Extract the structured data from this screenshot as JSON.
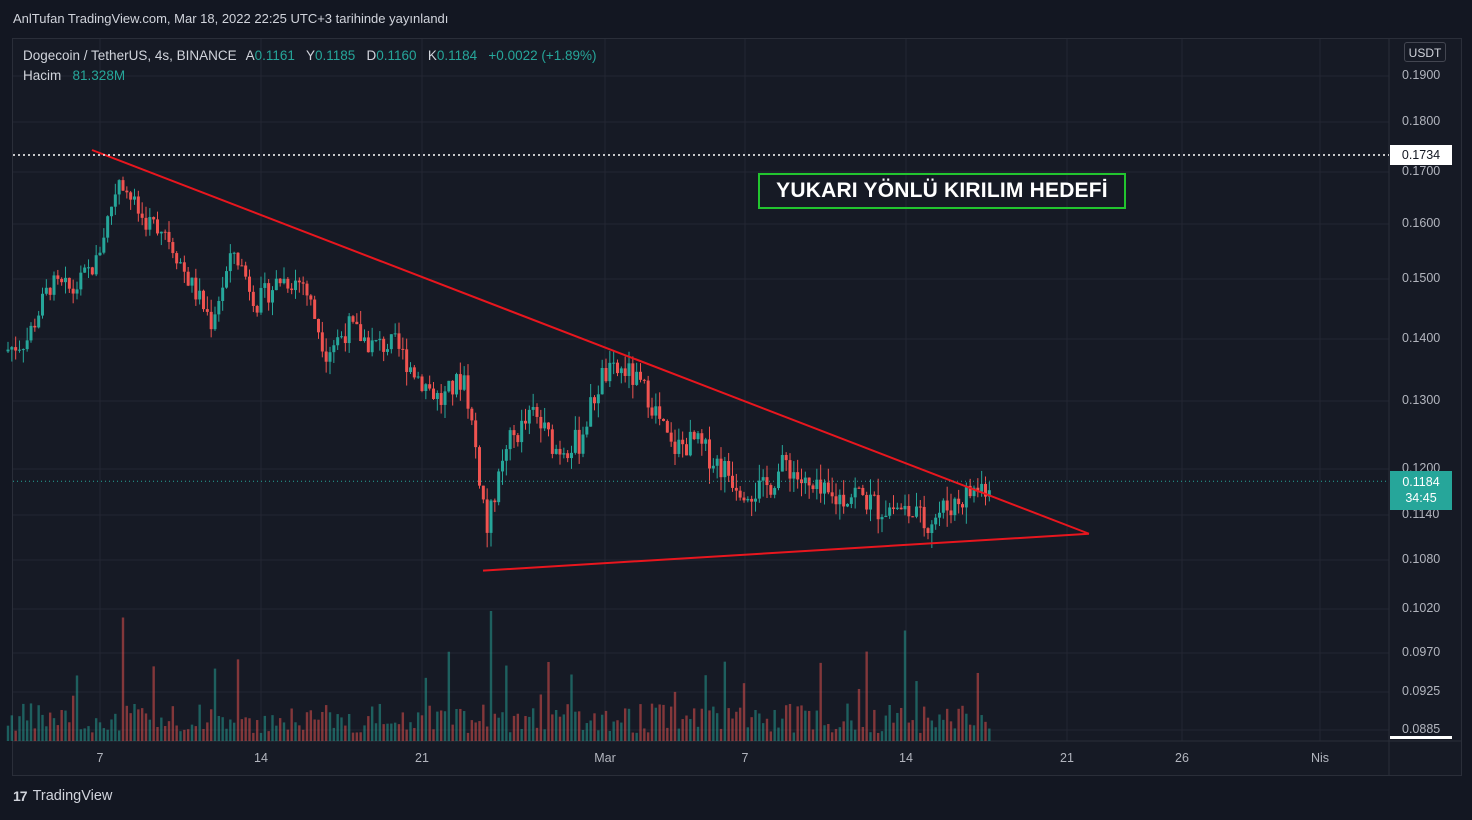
{
  "header": {
    "published": "AnlTufan TradingView.com, Mar 18, 2022 22:25 UTC+3 tarihinde yayınlandı"
  },
  "legend": {
    "symbol": "Dogecoin / TetherUS, 4s, BINANCE",
    "open_key": "A",
    "open": "0.1161",
    "high_key": "Y",
    "high": "0.1185",
    "low_key": "D",
    "low": "0.1160",
    "close_key": "K",
    "close": "0.1184",
    "change": "+0.0022 (+1.89%)",
    "volume_label": "Hacim",
    "volume": "81.328M"
  },
  "currency": "USDT",
  "annotation": "YUKARI YÖNLÜ KIRILIM HEDEFİ",
  "brand": "TradingView",
  "colors": {
    "background": "#131722",
    "up": "#26a69a",
    "down": "#ef5350",
    "trendline": "#e8161e",
    "annotation_border": "#22c42f"
  },
  "chart_data": {
    "type": "candlestick",
    "symbol": "DOGE/USDT",
    "interval": "4h",
    "y_ticks": [
      "0.1900",
      "0.1800",
      "0.1700",
      "0.1600",
      "0.1500",
      "0.1400",
      "0.1300",
      "0.1200",
      "0.1140",
      "0.1080",
      "0.1020",
      "0.0970",
      "0.0925",
      "0.0885"
    ],
    "x_ticks": [
      "7",
      "14",
      "21",
      "Mar",
      "7",
      "14",
      "21",
      "26",
      "Nis"
    ],
    "target_price": "0.1734",
    "last_price": "0.1184",
    "countdown": "34:45",
    "close_path": [
      [
        "Feb 3",
        0.138
      ],
      [
        "Feb 4",
        0.14
      ],
      [
        "Feb 5",
        0.149
      ],
      [
        "Feb 6",
        0.148
      ],
      [
        "Feb 7",
        0.153
      ],
      [
        "Feb 8",
        0.169
      ],
      [
        "Feb 9",
        0.161
      ],
      [
        "Feb 10",
        0.159
      ],
      [
        "Feb 11",
        0.15
      ],
      [
        "Feb 12",
        0.143
      ],
      [
        "Feb 13",
        0.155
      ],
      [
        "Feb 14",
        0.146
      ],
      [
        "Feb 15",
        0.15
      ],
      [
        "Feb 16",
        0.1495
      ],
      [
        "Feb 17",
        0.138
      ],
      [
        "Feb 18",
        0.142
      ],
      [
        "Feb 19",
        0.139
      ],
      [
        "Feb 20",
        0.139
      ],
      [
        "Feb 21",
        0.134
      ],
      [
        "Feb 22",
        0.13
      ],
      [
        "Feb 23",
        0.134
      ],
      [
        "Feb 24",
        0.112
      ],
      [
        "Feb 25",
        0.124
      ],
      [
        "Feb 26",
        0.128
      ],
      [
        "Feb 27",
        0.123
      ],
      [
        "Feb 28",
        0.124
      ],
      [
        "Mar 1",
        0.134
      ],
      [
        "Mar 2",
        0.135
      ],
      [
        "Mar 3",
        0.131
      ],
      [
        "Mar 4",
        0.123
      ],
      [
        "Mar 5",
        0.124
      ],
      [
        "Mar 6",
        0.121
      ],
      [
        "Mar 7",
        0.118
      ],
      [
        "Mar 8",
        0.117
      ],
      [
        "Mar 9",
        0.121
      ],
      [
        "Mar 10",
        0.117
      ],
      [
        "Mar 11",
        0.116
      ],
      [
        "Mar 12",
        0.117
      ],
      [
        "Mar 13",
        0.115
      ],
      [
        "Mar 14",
        0.115
      ],
      [
        "Mar 15",
        0.113
      ],
      [
        "Mar 16",
        0.115
      ],
      [
        "Mar 17",
        0.117
      ],
      [
        "Mar 18",
        0.1184
      ]
    ],
    "trendlines": [
      {
        "name": "upper",
        "from": [
          "Feb 7",
          0.1744
        ],
        "to": [
          "Mar 22",
          0.1115
        ]
      },
      {
        "name": "lower",
        "from": [
          "Feb 24",
          0.1067
        ],
        "to": [
          "Mar 22",
          0.1115
        ]
      }
    ],
    "volume_spikes": [
      {
        "date": "Feb 8",
        "relative": 0.95
      },
      {
        "date": "Feb 24",
        "relative": 1.0
      },
      {
        "date": "Mar 14",
        "relative": 0.85
      }
    ],
    "grid": true
  }
}
